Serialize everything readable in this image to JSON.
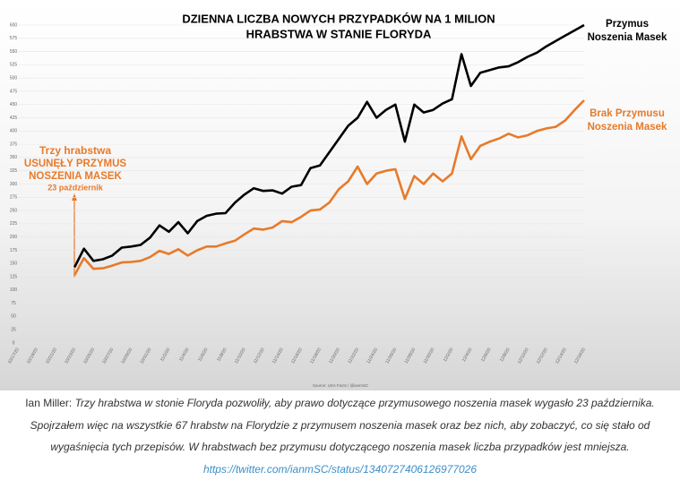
{
  "chart_data": {
    "type": "line",
    "title": [
      "DZIENNA LICZBA NOWYCH PRZYPADKÓW NA 1 MILION",
      "HRABSTWA W STANIE FLORYDA"
    ],
    "categories": [
      "10/17/20",
      null,
      "10/19/20",
      null,
      "10/21/20",
      null,
      "10/23/20",
      null,
      "10/25/20",
      null,
      "10/27/20",
      null,
      "10/29/20",
      null,
      "10/31/20",
      null,
      "11/2/20",
      null,
      "11/4/20",
      null,
      "11/6/20",
      null,
      "11/8/20",
      null,
      "11/10/20",
      null,
      "11/12/20",
      null,
      "11/14/20",
      null,
      "11/16/20",
      null,
      "11/18/20",
      null,
      "11/20/20",
      null,
      "11/22/20",
      null,
      "11/24/20",
      null,
      "11/26/20",
      null,
      "11/28/20",
      null,
      "11/30/20",
      null,
      "12/2/20",
      null,
      "12/4/20",
      null,
      "12/6/20",
      null,
      "12/8/20",
      null,
      "12/10/20",
      null,
      "12/12/20",
      null,
      "12/14/20",
      null,
      "12/16/20"
    ],
    "series": [
      {
        "name": [
          "Przymus",
          "Noszenia Masek"
        ],
        "color": "#000000",
        "values": [
          null,
          null,
          null,
          null,
          null,
          null,
          143,
          178,
          155,
          158,
          165,
          180,
          182,
          185,
          199,
          222,
          210,
          228,
          207,
          230,
          240,
          244,
          245,
          265,
          280,
          292,
          287,
          288,
          282,
          295,
          298,
          330,
          335,
          360,
          385,
          410,
          425,
          455,
          425,
          440,
          450,
          380,
          450,
          435,
          440,
          452,
          460,
          545,
          485,
          510,
          515,
          520,
          522,
          530,
          540,
          548,
          560,
          570,
          580,
          590,
          600
        ]
      },
      {
        "name": [
          "Brak Przymusu",
          "Noszenia Masek"
        ],
        "color": "#e87a2a",
        "values": [
          null,
          null,
          null,
          null,
          null,
          null,
          128,
          160,
          140,
          141,
          146,
          152,
          153,
          155,
          162,
          174,
          168,
          177,
          165,
          175,
          182,
          182,
          188,
          193,
          205,
          216,
          214,
          218,
          230,
          228,
          238,
          250,
          252,
          265,
          290,
          305,
          333,
          300,
          320,
          325,
          328,
          272,
          315,
          300,
          320,
          305,
          320,
          390,
          347,
          372,
          380,
          386,
          395,
          388,
          392,
          400,
          405,
          408,
          420,
          440,
          458
        ]
      }
    ],
    "ylim": [
      0,
      600
    ],
    "yticks": [
      0,
      25,
      50,
      75,
      100,
      125,
      150,
      175,
      200,
      225,
      250,
      275,
      300,
      325,
      350,
      375,
      400,
      425,
      450,
      475,
      500,
      525,
      550,
      575,
      600
    ],
    "grid": true,
    "annotation": [
      "Trzy hrabstwa",
      "USUNĘŁY PRZYMUS",
      "NOSZENIA MASEK",
      "23 październik"
    ],
    "source": "Source: USA Facts / @ianmSC"
  },
  "caption": {
    "author": "Ian Miller:",
    "lines": [
      "Trzy hrabstwa w stonie Floryda pozwoliły, aby prawo dotyczące przymusowego noszenia masek wygasło 23 października.",
      "Spojrzałem więc na wszystkie 67 hrabstw na Florydzie z przymusem noszenia masek oraz bez nich, aby zobaczyć, co się stało od",
      "wygaśnięcia tych przepisów. W hrabstwach bez przymusu dotyczącego noszenia masek liczba przypadków jest mniejsza."
    ],
    "link": "https://twitter.com/ianmSC/status/1340727406126977026"
  }
}
